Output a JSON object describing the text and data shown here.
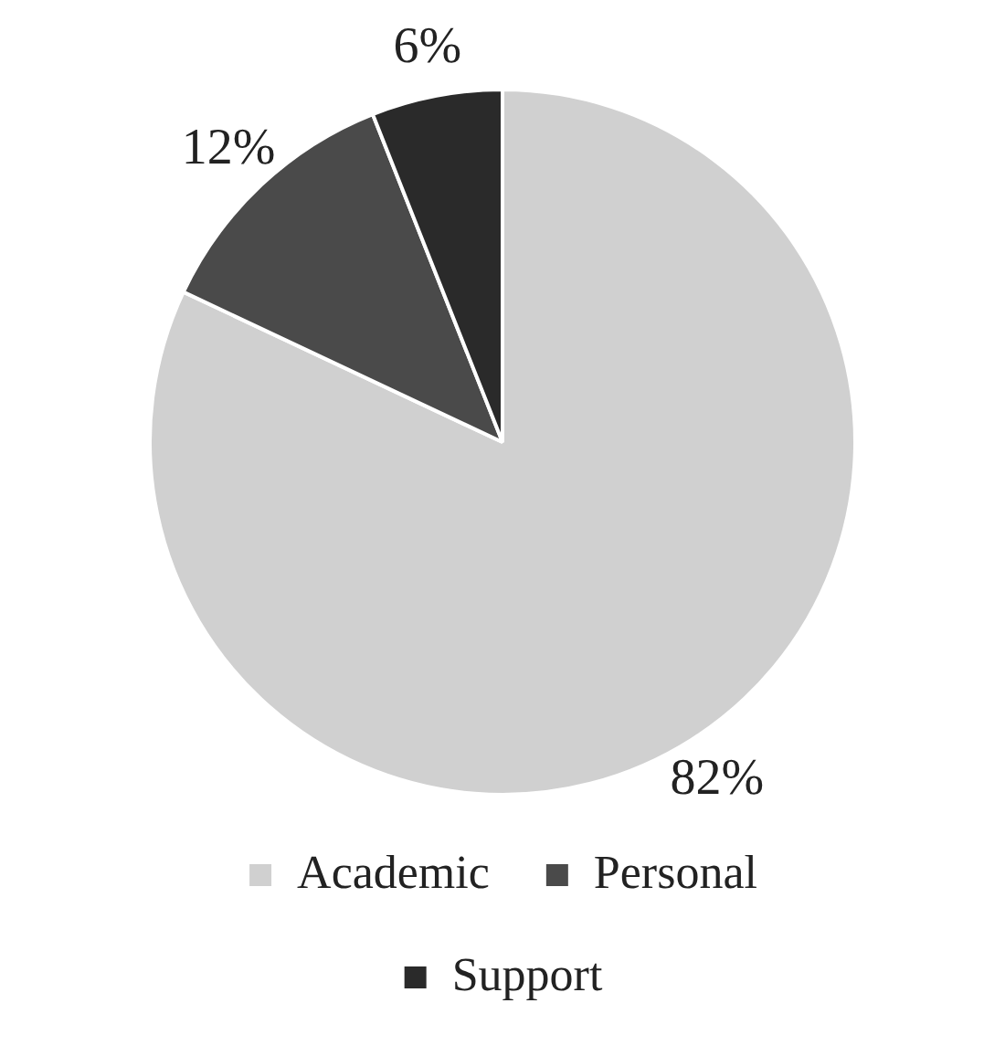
{
  "chart_data": {
    "type": "pie",
    "categories": [
      "Academic",
      "Personal",
      "Support"
    ],
    "values": [
      82,
      12,
      6
    ],
    "value_labels": [
      "82%",
      "12%",
      "6%"
    ],
    "colors": [
      "#d0d0d0",
      "#4a4a4a",
      "#2a2a2a"
    ],
    "legend": "bottom"
  }
}
